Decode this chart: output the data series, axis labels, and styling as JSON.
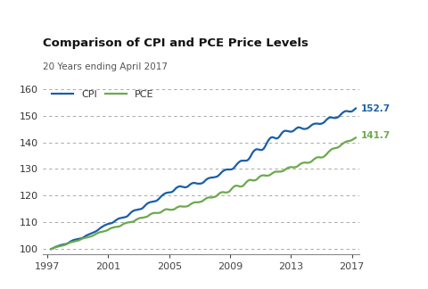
{
  "title": "Comparison of CPI and PCE Price Levels",
  "subtitle": "20 Years ending April 2017",
  "cpi_color": "#1a5ea8",
  "pce_color": "#6aaa4a",
  "background_color": "#ffffff",
  "ylim": [
    98,
    163
  ],
  "yticks": [
    100,
    110,
    120,
    130,
    140,
    150,
    160
  ],
  "x_start_year": 1997.25,
  "x_end_year": 2017.25,
  "xticks": [
    1997,
    2001,
    2005,
    2009,
    2013,
    2017
  ],
  "cpi_end_label": "152.7",
  "pce_end_label": "141.7",
  "legend_cpi": "CPI",
  "legend_pce": "PCE",
  "cpi_values": [
    100.0,
    100.2,
    100.4,
    100.7,
    100.9,
    101.0,
    101.2,
    101.4,
    101.5,
    101.6,
    101.7,
    101.8,
    101.9,
    102.1,
    102.4,
    102.7,
    103.0,
    103.2,
    103.4,
    103.5,
    103.6,
    103.7,
    103.8,
    103.9,
    104.0,
    104.2,
    104.5,
    104.8,
    105.1,
    105.3,
    105.5,
    105.7,
    105.9,
    106.1,
    106.3,
    106.5,
    106.8,
    107.1,
    107.5,
    107.9,
    108.2,
    108.5,
    108.8,
    109.0,
    109.2,
    109.4,
    109.5,
    109.6,
    109.7,
    110.0,
    110.3,
    110.7,
    111.0,
    111.3,
    111.5,
    111.6,
    111.7,
    111.8,
    111.9,
    112.0,
    112.2,
    112.6,
    113.1,
    113.6,
    114.0,
    114.3,
    114.5,
    114.6,
    114.7,
    114.8,
    114.9,
    115.0,
    115.2,
    115.6,
    116.1,
    116.6,
    117.0,
    117.3,
    117.5,
    117.6,
    117.7,
    117.8,
    117.9,
    118.0,
    118.3,
    118.7,
    119.2,
    119.7,
    120.1,
    120.5,
    120.8,
    121.0,
    121.1,
    121.2,
    121.2,
    121.3,
    121.5,
    121.9,
    122.4,
    122.9,
    123.2,
    123.4,
    123.5,
    123.4,
    123.3,
    123.2,
    123.1,
    123.2,
    123.4,
    123.8,
    124.2,
    124.5,
    124.7,
    124.8,
    124.7,
    124.6,
    124.5,
    124.5,
    124.5,
    124.6,
    124.8,
    125.2,
    125.7,
    126.1,
    126.4,
    126.6,
    126.7,
    126.8,
    126.8,
    126.9,
    127.0,
    127.1,
    127.4,
    127.8,
    128.3,
    128.8,
    129.2,
    129.5,
    129.7,
    129.8,
    129.8,
    129.8,
    129.8,
    129.9,
    130.1,
    130.6,
    131.2,
    131.8,
    132.3,
    132.7,
    133.0,
    133.1,
    133.1,
    133.1,
    133.1,
    133.2,
    133.5,
    134.1,
    134.9,
    135.8,
    136.5,
    137.0,
    137.3,
    137.4,
    137.3,
    137.2,
    137.1,
    137.2,
    137.5,
    138.2,
    139.1,
    140.0,
    140.8,
    141.4,
    141.8,
    141.9,
    141.8,
    141.6,
    141.4,
    141.5,
    141.8,
    142.4,
    143.1,
    143.7,
    144.1,
    144.3,
    144.3,
    144.2,
    144.1,
    144.0,
    144.0,
    144.1,
    144.4,
    144.8,
    145.2,
    145.5,
    145.6,
    145.5,
    145.3,
    145.1,
    145.0,
    145.0,
    145.1,
    145.3,
    145.6,
    146.0,
    146.4,
    146.7,
    146.9,
    147.0,
    147.0,
    147.0,
    146.9,
    146.9,
    147.0,
    147.2,
    147.5,
    148.0,
    148.5,
    148.9,
    149.2,
    149.3,
    149.3,
    149.2,
    149.1,
    149.1,
    149.2,
    149.4,
    149.8,
    150.3,
    150.8,
    151.2,
    151.5,
    151.7,
    151.7,
    151.6,
    151.5,
    151.5,
    151.6,
    151.9,
    152.3,
    152.7
  ],
  "pce_values": [
    100.0,
    100.1,
    100.3,
    100.5,
    100.7,
    100.8,
    100.9,
    101.0,
    101.1,
    101.2,
    101.3,
    101.4,
    101.5,
    101.7,
    101.9,
    102.1,
    102.3,
    102.5,
    102.6,
    102.7,
    102.8,
    102.9,
    103.0,
    103.1,
    103.2,
    103.4,
    103.6,
    103.8,
    104.0,
    104.1,
    104.2,
    104.3,
    104.4,
    104.5,
    104.6,
    104.7,
    104.9,
    105.1,
    105.3,
    105.6,
    105.8,
    106.0,
    106.2,
    106.3,
    106.4,
    106.5,
    106.6,
    106.7,
    106.8,
    107.0,
    107.2,
    107.5,
    107.7,
    107.9,
    108.0,
    108.1,
    108.2,
    108.3,
    108.3,
    108.4,
    108.5,
    108.7,
    109.0,
    109.3,
    109.5,
    109.7,
    109.8,
    109.9,
    110.0,
    110.0,
    110.1,
    110.2,
    110.3,
    110.5,
    110.8,
    111.1,
    111.3,
    111.5,
    111.6,
    111.7,
    111.7,
    111.8,
    111.9,
    112.0,
    112.1,
    112.4,
    112.7,
    113.0,
    113.2,
    113.4,
    113.5,
    113.5,
    113.5,
    113.5,
    113.5,
    113.6,
    113.7,
    114.0,
    114.3,
    114.6,
    114.8,
    114.9,
    114.9,
    114.8,
    114.7,
    114.7,
    114.7,
    114.8,
    114.9,
    115.2,
    115.5,
    115.7,
    115.9,
    116.0,
    116.0,
    115.9,
    115.9,
    115.9,
    115.9,
    116.0,
    116.1,
    116.4,
    116.7,
    117.0,
    117.2,
    117.4,
    117.5,
    117.5,
    117.5,
    117.5,
    117.6,
    117.7,
    117.8,
    118.1,
    118.4,
    118.7,
    119.0,
    119.2,
    119.3,
    119.3,
    119.3,
    119.3,
    119.4,
    119.5,
    119.6,
    119.9,
    120.3,
    120.7,
    121.0,
    121.2,
    121.3,
    121.3,
    121.2,
    121.2,
    121.2,
    121.3,
    121.5,
    121.9,
    122.4,
    122.9,
    123.3,
    123.6,
    123.7,
    123.7,
    123.6,
    123.5,
    123.4,
    123.5,
    123.6,
    124.0,
    124.5,
    125.0,
    125.4,
    125.7,
    125.9,
    125.9,
    125.8,
    125.7,
    125.7,
    125.8,
    126.0,
    126.4,
    126.8,
    127.2,
    127.4,
    127.6,
    127.6,
    127.6,
    127.5,
    127.5,
    127.5,
    127.6,
    127.8,
    128.1,
    128.4,
    128.7,
    128.9,
    129.0,
    129.0,
    129.0,
    129.0,
    129.0,
    129.1,
    129.2,
    129.4,
    129.7,
    130.0,
    130.3,
    130.5,
    130.6,
    130.7,
    130.7,
    130.6,
    130.6,
    130.7,
    130.8,
    131.0,
    131.4,
    131.7,
    132.0,
    132.2,
    132.3,
    132.4,
    132.4,
    132.3,
    132.3,
    132.4,
    132.5,
    132.7,
    133.1,
    133.5,
    133.8,
    134.1,
    134.3,
    134.4,
    134.4,
    134.3,
    134.3,
    134.4,
    134.6,
    134.9,
    135.3,
    135.8,
    136.3,
    136.7,
    137.1,
    137.4,
    137.6,
    137.7,
    137.8,
    137.9,
    138.0,
    138.2,
    138.5,
    138.9,
    139.3,
    139.6,
    139.9,
    140.1,
    140.3,
    140.4,
    140.5,
    140.6,
    140.7,
    140.9,
    141.2,
    141.5,
    141.7
  ]
}
